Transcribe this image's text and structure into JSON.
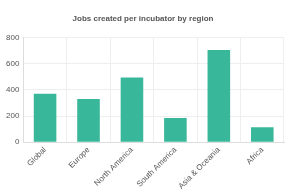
{
  "chart_data": {
    "type": "bar",
    "title": "Jobs created per incubator by region",
    "categories": [
      "Global",
      "Europe",
      "North America",
      "South America",
      "Asia & Oceania",
      "Africa"
    ],
    "values": [
      370,
      330,
      495,
      185,
      705,
      115
    ],
    "color": "#38b79a",
    "ylim": [
      0,
      800
    ],
    "yticks": [
      0,
      200,
      400,
      600,
      800
    ],
    "grid": true
  }
}
